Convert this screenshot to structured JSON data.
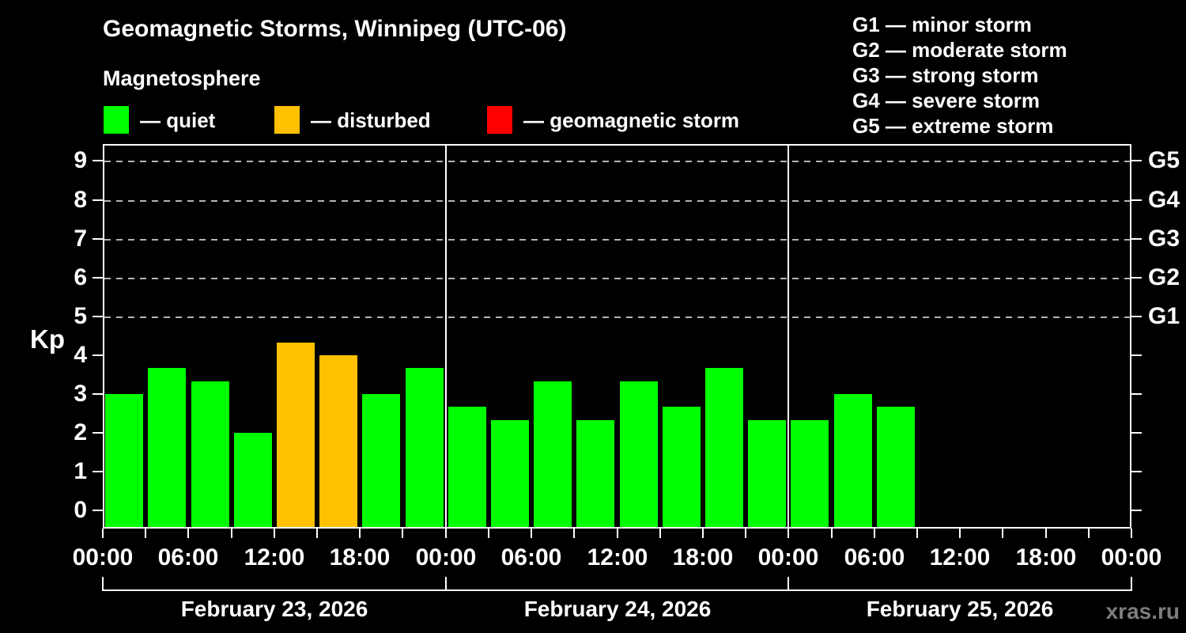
{
  "header": {
    "title": "Geomagnetic Storms, Winnipeg (UTC-06)",
    "subtitle": "Magnetosphere"
  },
  "legend": {
    "items": [
      {
        "id": "quiet",
        "label": "— quiet",
        "color": "#00FF00"
      },
      {
        "id": "disturbed",
        "label": "— disturbed",
        "color": "#FFC000"
      },
      {
        "id": "storm",
        "label": "— geomagnetic storm",
        "color": "#FF0000"
      }
    ]
  },
  "g_scale": {
    "items": [
      "G1 — minor storm",
      "G2 — moderate storm",
      "G3 — strong storm",
      "G4 — severe storm",
      "G5 — extreme storm"
    ]
  },
  "watermark": "xras.ru",
  "chart_data": {
    "type": "bar",
    "title": "Geomagnetic Storms, Winnipeg (UTC-06)",
    "subtitle": "Magnetosphere",
    "ylabel": "Kp",
    "ylim": [
      0,
      9
    ],
    "y_ticks": [
      0,
      1,
      2,
      3,
      4,
      5,
      6,
      7,
      8,
      9
    ],
    "gridlines_at": [
      5,
      6,
      7,
      8,
      9
    ],
    "grid": "dashed horizontal at storm levels only",
    "right_axis_labels": [
      {
        "kp": 5,
        "label": "G1"
      },
      {
        "kp": 6,
        "label": "G2"
      },
      {
        "kp": 7,
        "label": "G3"
      },
      {
        "kp": 8,
        "label": "G4"
      },
      {
        "kp": 9,
        "label": "G5"
      }
    ],
    "x_tick_labels": [
      "00:00",
      "06:00",
      "12:00",
      "18:00",
      "00:00",
      "06:00",
      "12:00",
      "18:00",
      "00:00",
      "06:00",
      "12:00",
      "18:00",
      "00:00"
    ],
    "bar_interval_hours": 3,
    "days": [
      {
        "date": "February 23, 2026",
        "values": [
          3,
          3.67,
          3.33,
          2,
          4.33,
          4,
          3,
          3.67
        ],
        "status": [
          "quiet",
          "quiet",
          "quiet",
          "quiet",
          "disturbed",
          "disturbed",
          "quiet",
          "quiet"
        ]
      },
      {
        "date": "February 24, 2026",
        "values": [
          2.67,
          2.33,
          3.33,
          2.33,
          3.33,
          2.67,
          3.67,
          2.33
        ],
        "status": [
          "quiet",
          "quiet",
          "quiet",
          "quiet",
          "quiet",
          "quiet",
          "quiet",
          "quiet"
        ]
      },
      {
        "date": "February 25, 2026",
        "values": [
          2.33,
          3,
          2.67
        ],
        "status": [
          "quiet",
          "quiet",
          "quiet"
        ]
      }
    ]
  }
}
